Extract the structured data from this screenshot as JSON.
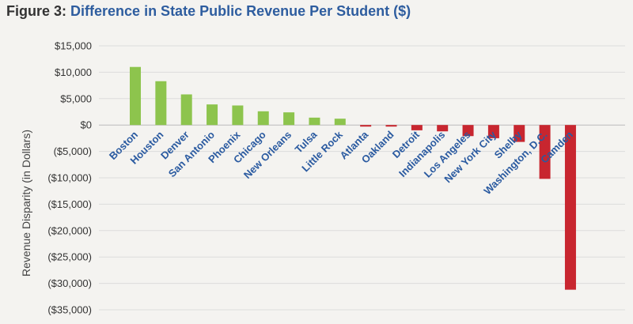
{
  "title": {
    "figure": "Figure 3:",
    "text": "Difference in State Public Revenue Per Student ($)"
  },
  "colors": {
    "positive": "#8dc44d",
    "negative": "#c8262f",
    "category_text": "#2a5aa0",
    "title_accent": "#2e5d9f"
  },
  "chart_data": {
    "type": "bar",
    "title": "Difference in State Public Revenue Per Student ($)",
    "ylabel": "Revenue Disparity (in Dollars)",
    "xlabel": "",
    "ylim": [
      -35000,
      15000
    ],
    "yticks": [
      15000,
      10000,
      5000,
      0,
      -5000,
      -10000,
      -15000,
      -20000,
      -25000,
      -30000,
      -35000
    ],
    "ytick_labels": [
      "$15,000",
      "$10,000",
      "$5,000",
      "$0",
      "($5,000)",
      "($10,000)",
      "($15,000)",
      "($20,000)",
      "($25,000)",
      "($30,000)",
      "($35,000)"
    ],
    "grid": true,
    "categories": [
      "Boston",
      "Houston",
      "Denver",
      "San Antonio",
      "Phoenix",
      "Chicago",
      "New Orleans",
      "Tulsa",
      "Little Rock",
      "Atlanta",
      "Oakland",
      "Detroit",
      "Indianapolis",
      "Los Angeles",
      "New York City",
      "Shelby",
      "Washington, D.C.",
      "Camden"
    ],
    "values": [
      11000,
      8300,
      5800,
      3900,
      3700,
      2600,
      2400,
      1400,
      1200,
      -300,
      -300,
      -1000,
      -1200,
      -2100,
      -2500,
      -3200,
      -10200,
      -31200
    ]
  }
}
